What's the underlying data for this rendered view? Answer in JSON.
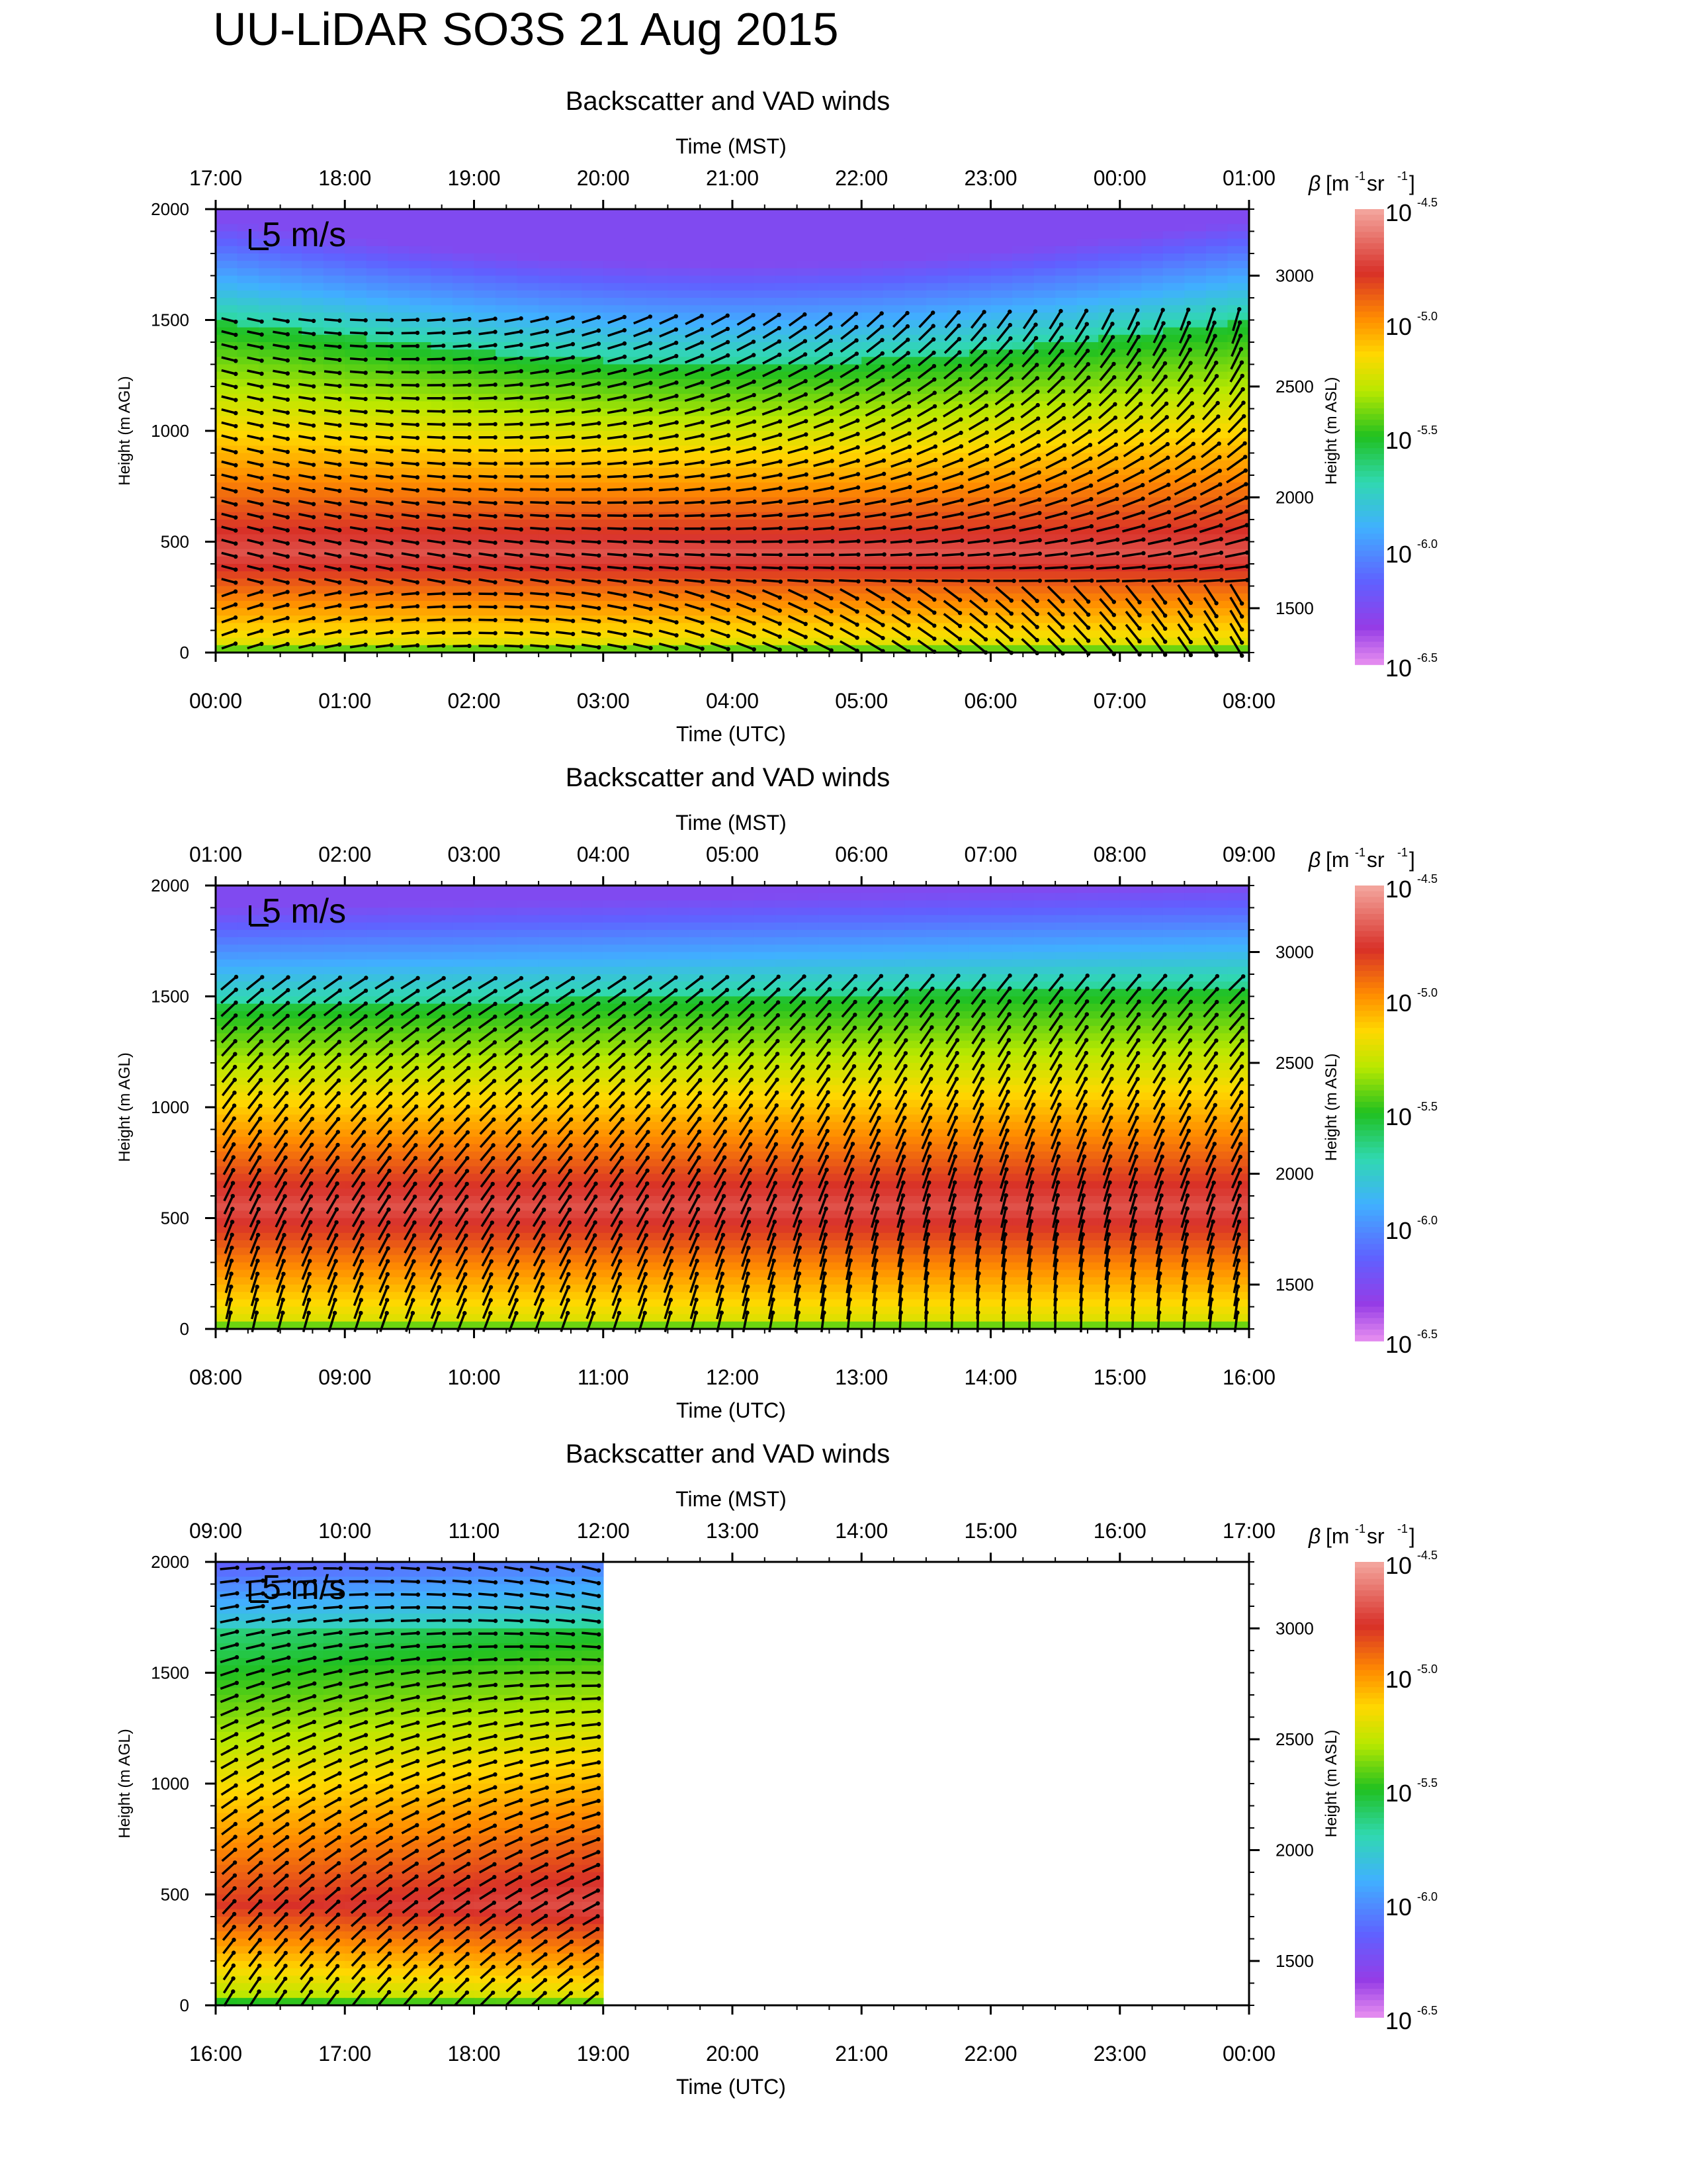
{
  "page": {
    "title": "UU-LiDAR SO3S 21 Aug 2015"
  },
  "colorbar": {
    "label_beta": "β",
    "label_units": "[m",
    "label_units_exp1": "-1",
    "label_units_mid": " sr",
    "label_units_exp2": "-1",
    "label_units_close": "]",
    "tick_base": "10",
    "tick_exponents": [
      "-4.5",
      "-5.0",
      "-5.5",
      "-6.0",
      "-6.5"
    ],
    "colors": [
      "#f4a8a0",
      "#d83028",
      "#ff8c00",
      "#ffd800",
      "#b8e800",
      "#20c020",
      "#30d8b0",
      "#40b0ff",
      "#6060ff",
      "#9030e0",
      "#e890f0"
    ]
  },
  "arrow_legend": {
    "label": "5 m/s"
  },
  "chart_data": [
    {
      "type": "heatmap",
      "title": "Backscatter and VAD winds",
      "xlabel_top": "Time (MST)",
      "xlabel_bottom": "Time (UTC)",
      "ylabel_left": "Height (m AGL)",
      "ylabel_right": "Height (m ASL)",
      "x_top_ticks": [
        "17:00",
        "18:00",
        "19:00",
        "20:00",
        "21:00",
        "22:00",
        "23:00",
        "00:00",
        "01:00"
      ],
      "x_bottom_ticks": [
        "00:00",
        "01:00",
        "02:00",
        "03:00",
        "04:00",
        "05:00",
        "06:00",
        "07:00",
        "08:00"
      ],
      "y_left_ticks": [
        0,
        500,
        1000,
        1500,
        2000
      ],
      "y_right_ticks": [
        1500,
        2000,
        2500,
        3000
      ],
      "ylim_agl": [
        0,
        2000
      ],
      "ylim_asl": [
        1300,
        3300
      ],
      "data_coverage_hours": 8,
      "layer_center_m": 450,
      "wind_direction_note": "westerly aloft, backing to southerly near surface later"
    },
    {
      "type": "heatmap",
      "title": "Backscatter and VAD winds",
      "xlabel_top": "Time (MST)",
      "xlabel_bottom": "Time (UTC)",
      "ylabel_left": "Height (m AGL)",
      "ylabel_right": "Height (m ASL)",
      "x_top_ticks": [
        "01:00",
        "02:00",
        "03:00",
        "04:00",
        "05:00",
        "06:00",
        "07:00",
        "08:00",
        "09:00"
      ],
      "x_bottom_ticks": [
        "08:00",
        "09:00",
        "10:00",
        "11:00",
        "12:00",
        "13:00",
        "14:00",
        "15:00",
        "16:00"
      ],
      "y_left_ticks": [
        0,
        500,
        1000,
        1500,
        2000
      ],
      "y_right_ticks": [
        1500,
        2000,
        2500,
        3000
      ],
      "ylim_agl": [
        0,
        2000
      ],
      "ylim_asl": [
        1300,
        3300
      ],
      "data_coverage_hours": 8,
      "layer_center_m": 550,
      "wind_direction_note": "southerly near surface, southwesterly aloft"
    },
    {
      "type": "heatmap",
      "title": "Backscatter and VAD winds",
      "xlabel_top": "Time (MST)",
      "xlabel_bottom": "Time (UTC)",
      "ylabel_left": "Height (m AGL)",
      "ylabel_right": "Height (m ASL)",
      "x_top_ticks": [
        "09:00",
        "10:00",
        "11:00",
        "12:00",
        "13:00",
        "14:00",
        "15:00",
        "16:00",
        "17:00"
      ],
      "x_bottom_ticks": [
        "16:00",
        "17:00",
        "18:00",
        "19:00",
        "20:00",
        "21:00",
        "22:00",
        "23:00",
        "00:00"
      ],
      "y_left_ticks": [
        0,
        500,
        1000,
        1500,
        2000
      ],
      "y_right_ticks": [
        1500,
        2000,
        2500,
        3000
      ],
      "ylim_agl": [
        0,
        2000
      ],
      "ylim_asl": [
        1300,
        3300
      ],
      "data_coverage_hours": 3,
      "layer_center_m": 450,
      "wind_direction_note": "southwesterly to westerly aloft"
    }
  ]
}
